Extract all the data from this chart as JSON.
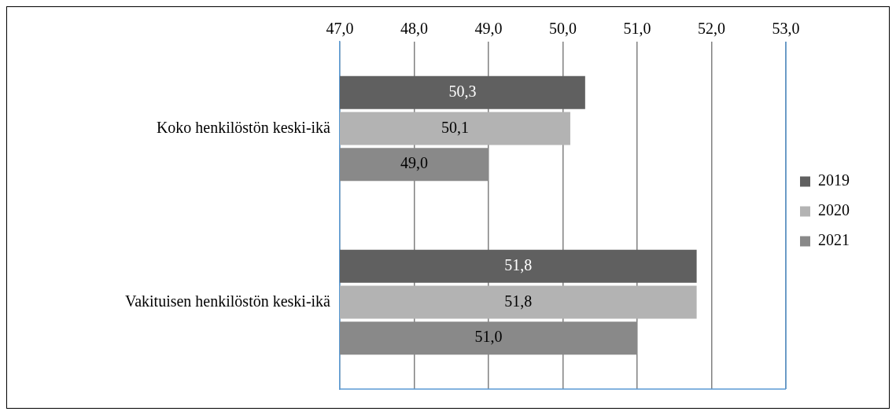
{
  "chart_data": {
    "type": "bar",
    "orientation": "horizontal",
    "categories": [
      "Koko henkilöstön keski-ikä",
      "Vakituisen henkilöstön keski-ikä"
    ],
    "series": [
      {
        "name": "2019",
        "color": "#606060",
        "values": [
          50.3,
          51.8
        ],
        "value_labels": [
          "50,3",
          "51,8"
        ]
      },
      {
        "name": "2020",
        "color": "#b3b3b3",
        "values": [
          50.1,
          51.8
        ],
        "value_labels": [
          "50,1",
          "51,8"
        ]
      },
      {
        "name": "2021",
        "color": "#898989",
        "values": [
          49.0,
          51.0
        ],
        "value_labels": [
          "49,0",
          "51,0"
        ]
      }
    ],
    "xlim": [
      47,
      53
    ],
    "xticks": [
      {
        "value": 47,
        "label": "47,0"
      },
      {
        "value": 48,
        "label": "48,0"
      },
      {
        "value": 49,
        "label": "49,0"
      },
      {
        "value": 50,
        "label": "50,0"
      },
      {
        "value": 51,
        "label": "51,0"
      },
      {
        "value": 52,
        "label": "52,0"
      },
      {
        "value": 53,
        "label": "53,0"
      }
    ],
    "grid": "x",
    "legend": "right"
  }
}
